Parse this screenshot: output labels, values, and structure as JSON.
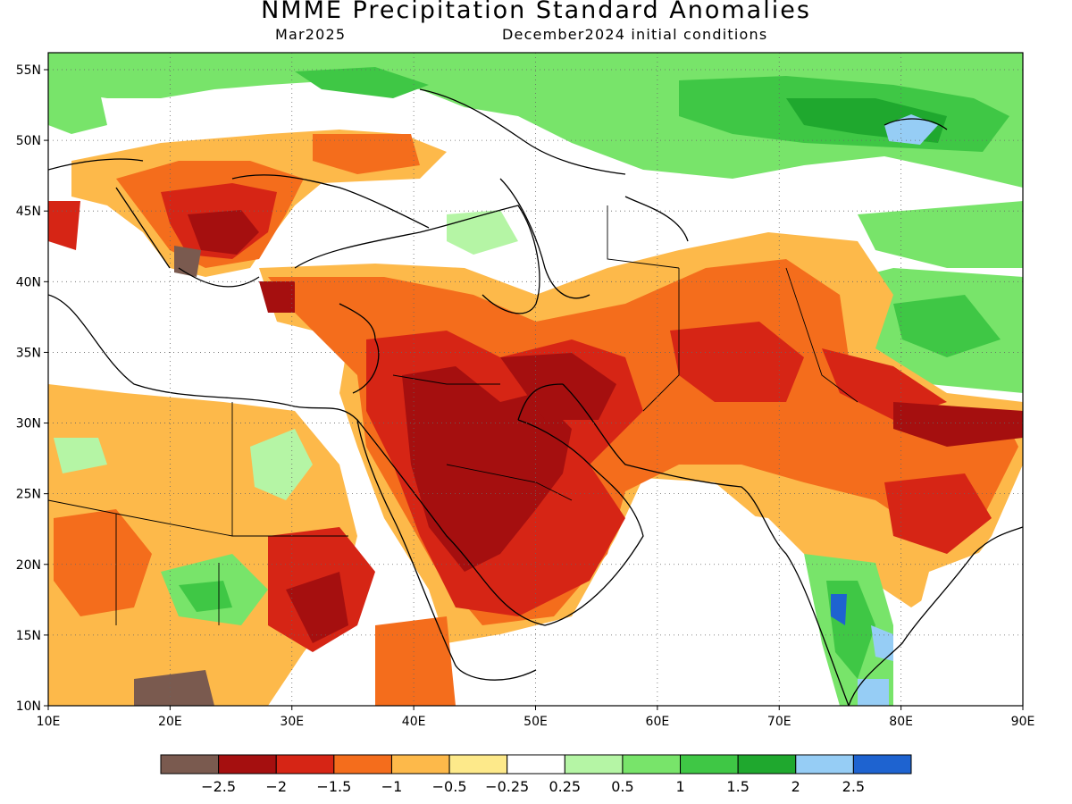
{
  "title": "NMME Precipitation Standard Anomalies",
  "target_month": "Mar2025",
  "init_label": "December2024 initial conditions",
  "lon_ticks": [
    "10E",
    "20E",
    "30E",
    "40E",
    "50E",
    "60E",
    "70E",
    "80E",
    "90E"
  ],
  "lat_ticks": [
    "55N",
    "50N",
    "45N",
    "40N",
    "35N",
    "30N",
    "25N",
    "20N",
    "15N",
    "10N"
  ],
  "colorbar": {
    "colors": [
      "#7a5a4f",
      "#a50f0f",
      "#d62515",
      "#f46d1c",
      "#fdb94a",
      "#fde98a",
      "#ffffff",
      "#b5f5a5",
      "#78e46a",
      "#3fc745",
      "#1fa82e",
      "#96cdf5",
      "#1e63d0"
    ],
    "labels": [
      "−2.5",
      "−2",
      "−1.5",
      "−1",
      "−0.5",
      "−0.25",
      "0.25",
      "0.5",
      "1",
      "1.5",
      "2",
      "2.5"
    ]
  }
}
